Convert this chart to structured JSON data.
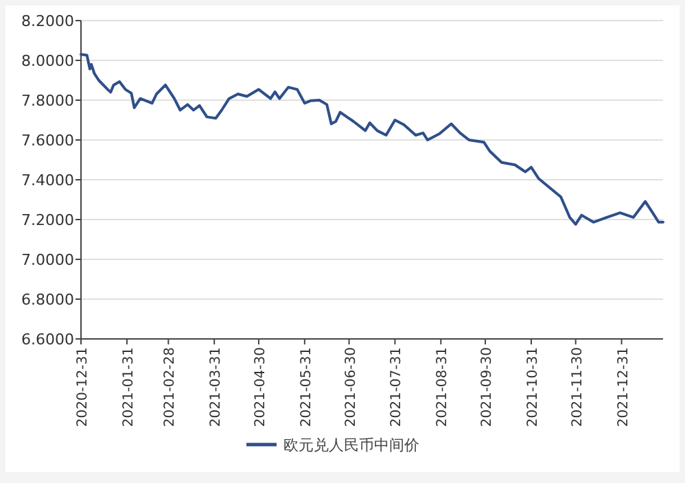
{
  "chart_data": {
    "type": "line",
    "x": [
      "2020-12-31",
      "2021-01-04",
      "2021-01-06",
      "2021-01-07",
      "2021-01-09",
      "2021-01-12",
      "2021-01-18",
      "2021-01-20",
      "2021-01-22",
      "2021-01-26",
      "2021-01-30",
      "2021-02-03",
      "2021-02-05",
      "2021-02-09",
      "2021-02-17",
      "2021-02-20",
      "2021-02-26",
      "2021-03-04",
      "2021-03-08",
      "2021-03-13",
      "2021-03-17",
      "2021-03-21",
      "2021-03-26",
      "2021-04-01",
      "2021-04-05",
      "2021-04-10",
      "2021-04-16",
      "2021-04-22",
      "2021-04-30",
      "2021-05-08",
      "2021-05-11",
      "2021-05-14",
      "2021-05-20",
      "2021-05-26",
      "2021-05-31",
      "2021-06-04",
      "2021-06-10",
      "2021-06-15",
      "2021-06-18",
      "2021-06-21",
      "2021-06-24",
      "2021-07-03",
      "2021-07-11",
      "2021-07-14",
      "2021-07-19",
      "2021-07-25",
      "2021-07-31",
      "2021-08-06",
      "2021-08-14",
      "2021-08-19",
      "2021-08-22",
      "2021-08-30",
      "2021-09-07",
      "2021-09-13",
      "2021-09-19",
      "2021-09-29",
      "2021-10-03",
      "2021-10-11",
      "2021-10-20",
      "2021-10-27",
      "2021-10-31",
      "2021-11-05",
      "2021-11-20",
      "2021-11-26",
      "2021-11-30",
      "2021-12-04",
      "2021-12-12",
      "2021-12-21",
      "2021-12-30",
      "2022-01-08",
      "2022-01-16",
      "2022-01-21",
      "2022-01-25",
      "2022-01-28"
    ],
    "series": [
      {
        "name": "欧元兑人民币中间价",
        "color": "#2f4f8a",
        "values": [
          8.03,
          8.026,
          7.957,
          7.98,
          7.934,
          7.9,
          7.854,
          7.84,
          7.876,
          7.893,
          7.854,
          7.835,
          7.762,
          7.808,
          7.785,
          7.831,
          7.876,
          7.808,
          7.75,
          7.778,
          7.75,
          7.773,
          7.716,
          7.709,
          7.75,
          7.808,
          7.831,
          7.819,
          7.854,
          7.808,
          7.842,
          7.808,
          7.865,
          7.854,
          7.785,
          7.797,
          7.8,
          7.778,
          7.681,
          7.693,
          7.739,
          7.693,
          7.647,
          7.686,
          7.647,
          7.624,
          7.7,
          7.677,
          7.624,
          7.635,
          7.6,
          7.631,
          7.681,
          7.635,
          7.6,
          7.589,
          7.544,
          7.487,
          7.475,
          7.44,
          7.463,
          7.406,
          7.314,
          7.211,
          7.176,
          7.222,
          7.187,
          7.211,
          7.234,
          7.211,
          7.291,
          7.234,
          7.187,
          7.187
        ]
      }
    ],
    "xlim": [
      "2020-12-31",
      "2022-01-28"
    ],
    "xticks": [
      {
        "value": "2020-12-31",
        "label": "2020-12-31"
      },
      {
        "value": "2021-01-31",
        "label": "2021-01-31"
      },
      {
        "value": "2021-02-28",
        "label": "2021-02-28"
      },
      {
        "value": "2021-03-31",
        "label": "2021-03-31"
      },
      {
        "value": "2021-04-30",
        "label": "2021-04-30"
      },
      {
        "value": "2021-05-31",
        "label": "2021-05-31"
      },
      {
        "value": "2021-06-30",
        "label": "2021-06-30"
      },
      {
        "value": "2021-07-31",
        "label": "2021-07-31"
      },
      {
        "value": "2021-08-31",
        "label": "2021-08-31"
      },
      {
        "value": "2021-09-30",
        "label": "2021-09-30"
      },
      {
        "value": "2021-10-31",
        "label": "2021-10-31"
      },
      {
        "value": "2021-11-30",
        "label": "2021-11-30"
      },
      {
        "value": "2021-12-31",
        "label": "2021-12-31"
      }
    ],
    "ylim": [
      6.6,
      8.2
    ],
    "yticks": [
      {
        "value": 6.6,
        "label": "6.6000"
      },
      {
        "value": 6.8,
        "label": "6.8000"
      },
      {
        "value": 7.0,
        "label": "7.0000"
      },
      {
        "value": 7.2,
        "label": "7.2000"
      },
      {
        "value": 7.4,
        "label": "7.4000"
      },
      {
        "value": 7.6,
        "label": "7.6000"
      },
      {
        "value": 7.8,
        "label": "7.8000"
      },
      {
        "value": 8.0,
        "label": "8.0000"
      },
      {
        "value": 8.2,
        "label": "8.2000"
      }
    ],
    "grid": "y",
    "legend": "bottom",
    "marker": "none",
    "line_style": "solid"
  }
}
